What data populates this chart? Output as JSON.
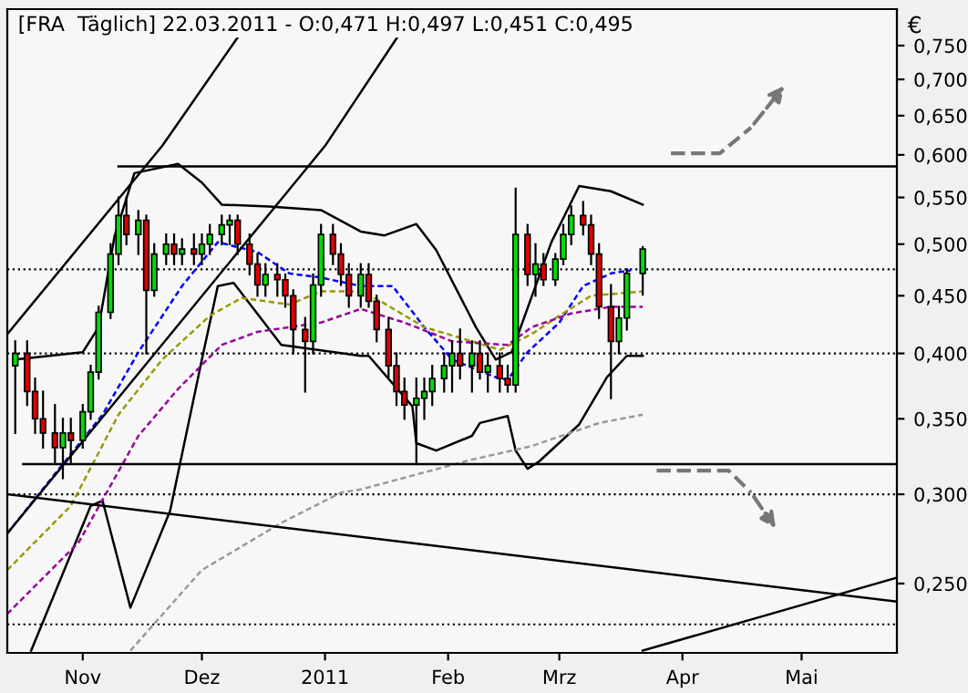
{
  "chart_data": {
    "type": "candlestick",
    "title": "[FRA  Täglich] 22.03.2011 - O:0,471 H:0,497 L:0,451 C:0,495",
    "ylabel": "€",
    "log": "y",
    "grid": false,
    "xlim": [
      "2010-10-13",
      "2011-05-25"
    ],
    "xticks": [
      {
        "value": "2010-11-01",
        "label": "Nov"
      },
      {
        "value": "2010-12-01",
        "label": "Dez"
      },
      {
        "value": "2011-01-01",
        "label": "2011"
      },
      {
        "value": "2011-02-01",
        "label": "Feb"
      },
      {
        "value": "2011-03-01",
        "label": "Mrz"
      },
      {
        "value": "2011-04-01",
        "label": "Apr"
      },
      {
        "value": "2011-05-01",
        "label": "Mai"
      }
    ],
    "ylim": [
      0.217,
      0.808
    ],
    "yticks": [
      {
        "value": 0.25,
        "label": "0,250"
      },
      {
        "value": 0.3,
        "label": "0,300"
      },
      {
        "value": 0.35,
        "label": "0,350"
      },
      {
        "value": 0.4,
        "label": "0,400"
      },
      {
        "value": 0.45,
        "label": "0,450"
      },
      {
        "value": 0.5,
        "label": "0,500"
      },
      {
        "value": 0.55,
        "label": "0,550"
      },
      {
        "value": 0.6,
        "label": "0,600"
      },
      {
        "value": 0.65,
        "label": "0,650"
      },
      {
        "value": 0.7,
        "label": "0,700"
      },
      {
        "value": 0.75,
        "label": "0,750"
      }
    ],
    "x": [
      "2010-10-15",
      "2010-10-18",
      "2010-10-20",
      "2010-10-22",
      "2010-10-25",
      "2010-10-27",
      "2010-10-29",
      "2010-11-01",
      "2010-11-03",
      "2010-11-05",
      "2010-11-08",
      "2010-11-10",
      "2010-11-12",
      "2010-11-15",
      "2010-11-17",
      "2010-11-19",
      "2010-11-22",
      "2010-11-24",
      "2010-11-26",
      "2010-11-29",
      "2010-12-01",
      "2010-12-03",
      "2010-12-06",
      "2010-12-08",
      "2010-12-10",
      "2010-12-13",
      "2010-12-15",
      "2010-12-17",
      "2010-12-20",
      "2010-12-22",
      "2010-12-24",
      "2010-12-27",
      "2010-12-29",
      "2010-12-31",
      "2011-01-03",
      "2011-01-05",
      "2011-01-07",
      "2011-01-10",
      "2011-01-12",
      "2011-01-14",
      "2011-01-17",
      "2011-01-19",
      "2011-01-21",
      "2011-01-24",
      "2011-01-26",
      "2011-01-28",
      "2011-01-31",
      "2011-02-02",
      "2011-02-04",
      "2011-02-07",
      "2011-02-09",
      "2011-02-11",
      "2011-02-14",
      "2011-02-16",
      "2011-02-18",
      "2011-02-21",
      "2011-02-23",
      "2011-02-25",
      "2011-02-28",
      "2011-03-02",
      "2011-03-04",
      "2011-03-07",
      "2011-03-09",
      "2011-03-11",
      "2011-03-14",
      "2011-03-16",
      "2011-03-18",
      "2011-03-22"
    ],
    "ohlc": [
      [
        0.39,
        0.41,
        0.34,
        0.4
      ],
      [
        0.4,
        0.41,
        0.36,
        0.37
      ],
      [
        0.37,
        0.38,
        0.34,
        0.35
      ],
      [
        0.35,
        0.37,
        0.33,
        0.34
      ],
      [
        0.34,
        0.36,
        0.32,
        0.33
      ],
      [
        0.33,
        0.35,
        0.31,
        0.34
      ],
      [
        0.34,
        0.35,
        0.32,
        0.335
      ],
      [
        0.335,
        0.36,
        0.33,
        0.355
      ],
      [
        0.355,
        0.39,
        0.35,
        0.385
      ],
      [
        0.385,
        0.44,
        0.38,
        0.435
      ],
      [
        0.435,
        0.5,
        0.43,
        0.49
      ],
      [
        0.49,
        0.55,
        0.48,
        0.53
      ],
      [
        0.53,
        0.55,
        0.5,
        0.51
      ],
      [
        0.51,
        0.535,
        0.49,
        0.525
      ],
      [
        0.525,
        0.53,
        0.4,
        0.455
      ],
      [
        0.455,
        0.5,
        0.45,
        0.49
      ],
      [
        0.49,
        0.51,
        0.48,
        0.5
      ],
      [
        0.5,
        0.51,
        0.48,
        0.49
      ],
      [
        0.49,
        0.505,
        0.48,
        0.495
      ],
      [
        0.495,
        0.51,
        0.48,
        0.49
      ],
      [
        0.49,
        0.51,
        0.48,
        0.5
      ],
      [
        0.5,
        0.52,
        0.49,
        0.51
      ],
      [
        0.51,
        0.53,
        0.5,
        0.52
      ],
      [
        0.52,
        0.53,
        0.5,
        0.525
      ],
      [
        0.525,
        0.53,
        0.49,
        0.5
      ],
      [
        0.5,
        0.51,
        0.47,
        0.48
      ],
      [
        0.48,
        0.49,
        0.45,
        0.46
      ],
      [
        0.46,
        0.48,
        0.45,
        0.47
      ],
      [
        0.47,
        0.48,
        0.45,
        0.465
      ],
      [
        0.465,
        0.47,
        0.44,
        0.45
      ],
      [
        0.45,
        0.455,
        0.4,
        0.42
      ],
      [
        0.42,
        0.43,
        0.37,
        0.41
      ],
      [
        0.41,
        0.47,
        0.4,
        0.46
      ],
      [
        0.46,
        0.52,
        0.45,
        0.51
      ],
      [
        0.51,
        0.52,
        0.48,
        0.49
      ],
      [
        0.49,
        0.5,
        0.46,
        0.47
      ],
      [
        0.47,
        0.48,
        0.44,
        0.45
      ],
      [
        0.45,
        0.48,
        0.44,
        0.47
      ],
      [
        0.47,
        0.48,
        0.44,
        0.445
      ],
      [
        0.445,
        0.45,
        0.41,
        0.42
      ],
      [
        0.42,
        0.43,
        0.38,
        0.39
      ],
      [
        0.39,
        0.4,
        0.36,
        0.37
      ],
      [
        0.37,
        0.38,
        0.35,
        0.36
      ],
      [
        0.36,
        0.38,
        0.32,
        0.365
      ],
      [
        0.365,
        0.38,
        0.35,
        0.37
      ],
      [
        0.37,
        0.39,
        0.36,
        0.38
      ],
      [
        0.38,
        0.4,
        0.37,
        0.39
      ],
      [
        0.39,
        0.41,
        0.37,
        0.4
      ],
      [
        0.4,
        0.42,
        0.38,
        0.39
      ],
      [
        0.39,
        0.41,
        0.37,
        0.4
      ],
      [
        0.4,
        0.41,
        0.38,
        0.385
      ],
      [
        0.385,
        0.4,
        0.37,
        0.39
      ],
      [
        0.39,
        0.4,
        0.37,
        0.38
      ],
      [
        0.38,
        0.39,
        0.37,
        0.375
      ],
      [
        0.375,
        0.56,
        0.37,
        0.51
      ],
      [
        0.51,
        0.52,
        0.46,
        0.47
      ],
      [
        0.47,
        0.5,
        0.45,
        0.48
      ],
      [
        0.48,
        0.49,
        0.46,
        0.465
      ],
      [
        0.465,
        0.49,
        0.46,
        0.485
      ],
      [
        0.485,
        0.52,
        0.48,
        0.51
      ],
      [
        0.51,
        0.54,
        0.5,
        0.53
      ],
      [
        0.53,
        0.545,
        0.51,
        0.52
      ],
      [
        0.52,
        0.53,
        0.48,
        0.49
      ],
      [
        0.49,
        0.5,
        0.43,
        0.44
      ],
      [
        0.44,
        0.46,
        0.365,
        0.41
      ],
      [
        0.41,
        0.44,
        0.4,
        0.43
      ],
      [
        0.43,
        0.475,
        0.42,
        0.471
      ],
      [
        0.471,
        0.497,
        0.451,
        0.495
      ]
    ],
    "ref_lines": [
      {
        "axis": "y",
        "value": 0.475,
        "color": "#000000",
        "line_style": "dotted"
      },
      {
        "axis": "y",
        "value": 0.4,
        "color": "#000000",
        "line_style": "dotted"
      },
      {
        "axis": "y",
        "value": 0.3,
        "color": "#000000",
        "line_style": "dotted"
      },
      {
        "axis": "y",
        "value": 0.23,
        "color": "#000000",
        "line_style": "dotted"
      }
    ],
    "series": [
      {
        "type": "line",
        "color": "#000000",
        "line_style": "solid",
        "x": [
          "2010-10-15",
          "2010-11-01",
          "2010-11-05",
          "2010-11-09",
          "2010-11-14",
          "2010-11-25",
          "2010-12-01",
          "2010-12-06",
          "2010-12-18",
          "2010-12-31",
          "2011-01-10",
          "2011-01-16",
          "2011-01-24",
          "2011-01-29",
          "2011-02-08",
          "2011-02-13",
          "2011-02-17",
          "2011-02-27",
          "2011-03-06",
          "2011-03-14",
          "2011-03-22"
        ],
        "values": [
          0.395,
          0.401,
          0.422,
          0.508,
          0.578,
          0.589,
          0.567,
          0.542,
          0.54,
          0.536,
          0.513,
          0.509,
          0.521,
          0.494,
          0.422,
          0.395,
          0.401,
          0.502,
          0.563,
          0.557,
          0.542
        ]
      },
      {
        "type": "line",
        "color": "#000000",
        "line_style": "solid",
        "x": [
          "2010-10-19",
          "2010-11-03",
          "2010-11-06",
          "2010-11-13",
          "2010-11-23",
          "2010-12-01",
          "2010-12-05",
          "2010-12-09",
          "2010-12-21",
          "2011-01-10",
          "2011-01-12",
          "2011-01-23",
          "2011-01-24",
          "2011-01-29",
          "2011-02-07",
          "2011-02-09",
          "2011-02-16",
          "2011-02-18",
          "2011-02-21",
          "2011-02-24",
          "2011-03-06",
          "2011-03-13",
          "2011-03-18",
          "2011-03-22"
        ],
        "values": [
          0.218,
          0.293,
          0.296,
          0.238,
          0.29,
          0.395,
          0.459,
          0.462,
          0.407,
          0.398,
          0.398,
          0.359,
          0.333,
          0.328,
          0.338,
          0.347,
          0.352,
          0.328,
          0.316,
          0.321,
          0.346,
          0.381,
          0.398,
          0.398
        ]
      },
      {
        "type": "line",
        "color": "#0000ff",
        "line_style": "dashed",
        "x": [
          "2010-10-13",
          "2010-11-06",
          "2010-11-15",
          "2010-11-26",
          "2010-12-05",
          "2010-12-15",
          "2010-12-23",
          "2010-12-31",
          "2011-01-10",
          "2011-01-18",
          "2011-01-26",
          "2011-02-02",
          "2011-02-13",
          "2011-02-16",
          "2011-02-21",
          "2011-03-01",
          "2011-03-07",
          "2011-03-14",
          "2011-03-19"
        ],
        "values": [
          0.277,
          0.353,
          0.401,
          0.459,
          0.502,
          0.492,
          0.471,
          0.467,
          0.459,
          0.459,
          0.422,
          0.395,
          0.381,
          0.379,
          0.401,
          0.426,
          0.459,
          0.471,
          0.474
        ]
      },
      {
        "type": "line",
        "color": "#999900",
        "line_style": "dashed",
        "x": [
          "2010-10-13",
          "2010-10-29",
          "2010-11-10",
          "2010-11-21",
          "2010-12-03",
          "2010-12-11",
          "2010-12-23",
          "2010-12-31",
          "2011-01-10",
          "2011-01-15",
          "2011-01-26",
          "2011-02-07",
          "2011-02-14",
          "2011-02-22",
          "2011-03-01",
          "2011-03-09",
          "2011-03-22"
        ],
        "values": [
          0.257,
          0.293,
          0.353,
          0.395,
          0.432,
          0.448,
          0.442,
          0.454,
          0.454,
          0.445,
          0.422,
          0.41,
          0.403,
          0.416,
          0.432,
          0.45,
          0.454
        ]
      },
      {
        "type": "line",
        "color": "#990099",
        "line_style": "dashed",
        "x": [
          "2010-10-13",
          "2010-10-31",
          "2010-11-15",
          "2010-11-25",
          "2010-12-06",
          "2010-12-15",
          "2010-12-31",
          "2011-01-10",
          "2011-01-21",
          "2011-02-02",
          "2011-02-16",
          "2011-02-22",
          "2011-03-04",
          "2011-03-14",
          "2011-03-22"
        ],
        "values": [
          0.235,
          0.272,
          0.338,
          0.372,
          0.407,
          0.418,
          0.426,
          0.438,
          0.426,
          0.41,
          0.407,
          0.422,
          0.434,
          0.44,
          0.44
        ]
      },
      {
        "type": "line",
        "color": "#999999",
        "line_style": "dashed",
        "x": [
          "2010-11-13",
          "2010-12-01",
          "2010-12-21",
          "2011-01-05",
          "2011-01-10",
          "2011-02-07",
          "2011-02-22",
          "2011-03-11",
          "2011-03-22"
        ],
        "values": [
          0.218,
          0.257,
          0.283,
          0.301,
          0.303,
          0.322,
          0.331,
          0.347,
          0.353
        ]
      },
      {
        "type": "line",
        "color": "#000000",
        "line_style": "solid",
        "x": [
          "2010-11-10",
          "2011-05-25"
        ],
        "values": [
          0.586,
          0.586
        ]
      },
      {
        "type": "line",
        "color": "#000000",
        "line_style": "solid",
        "x": [
          "2010-10-17",
          "2011-05-25"
        ],
        "values": [
          0.319,
          0.319
        ]
      },
      {
        "type": "line",
        "color": "#000000",
        "line_style": "solid",
        "x": [
          "2011-03-22",
          "2011-05-25"
        ],
        "values": [
          0.218,
          0.253
        ]
      },
      {
        "type": "line",
        "color": "#000000",
        "line_style": "solid",
        "x": [
          "2010-10-13",
          "2011-05-25"
        ],
        "values": [
          0.3,
          0.241
        ]
      },
      {
        "type": "line",
        "color": "#000000",
        "line_style": "solid",
        "x": [
          "2010-10-13",
          "2010-11-21",
          "2010-12-14"
        ],
        "values": [
          0.416,
          0.611,
          0.799
        ]
      },
      {
        "type": "line",
        "color": "#000000",
        "line_style": "solid",
        "x": [
          "2010-10-13",
          "2011-01-01",
          "2011-01-23"
        ],
        "values": [
          0.277,
          0.611,
          0.799
        ]
      }
    ]
  }
}
